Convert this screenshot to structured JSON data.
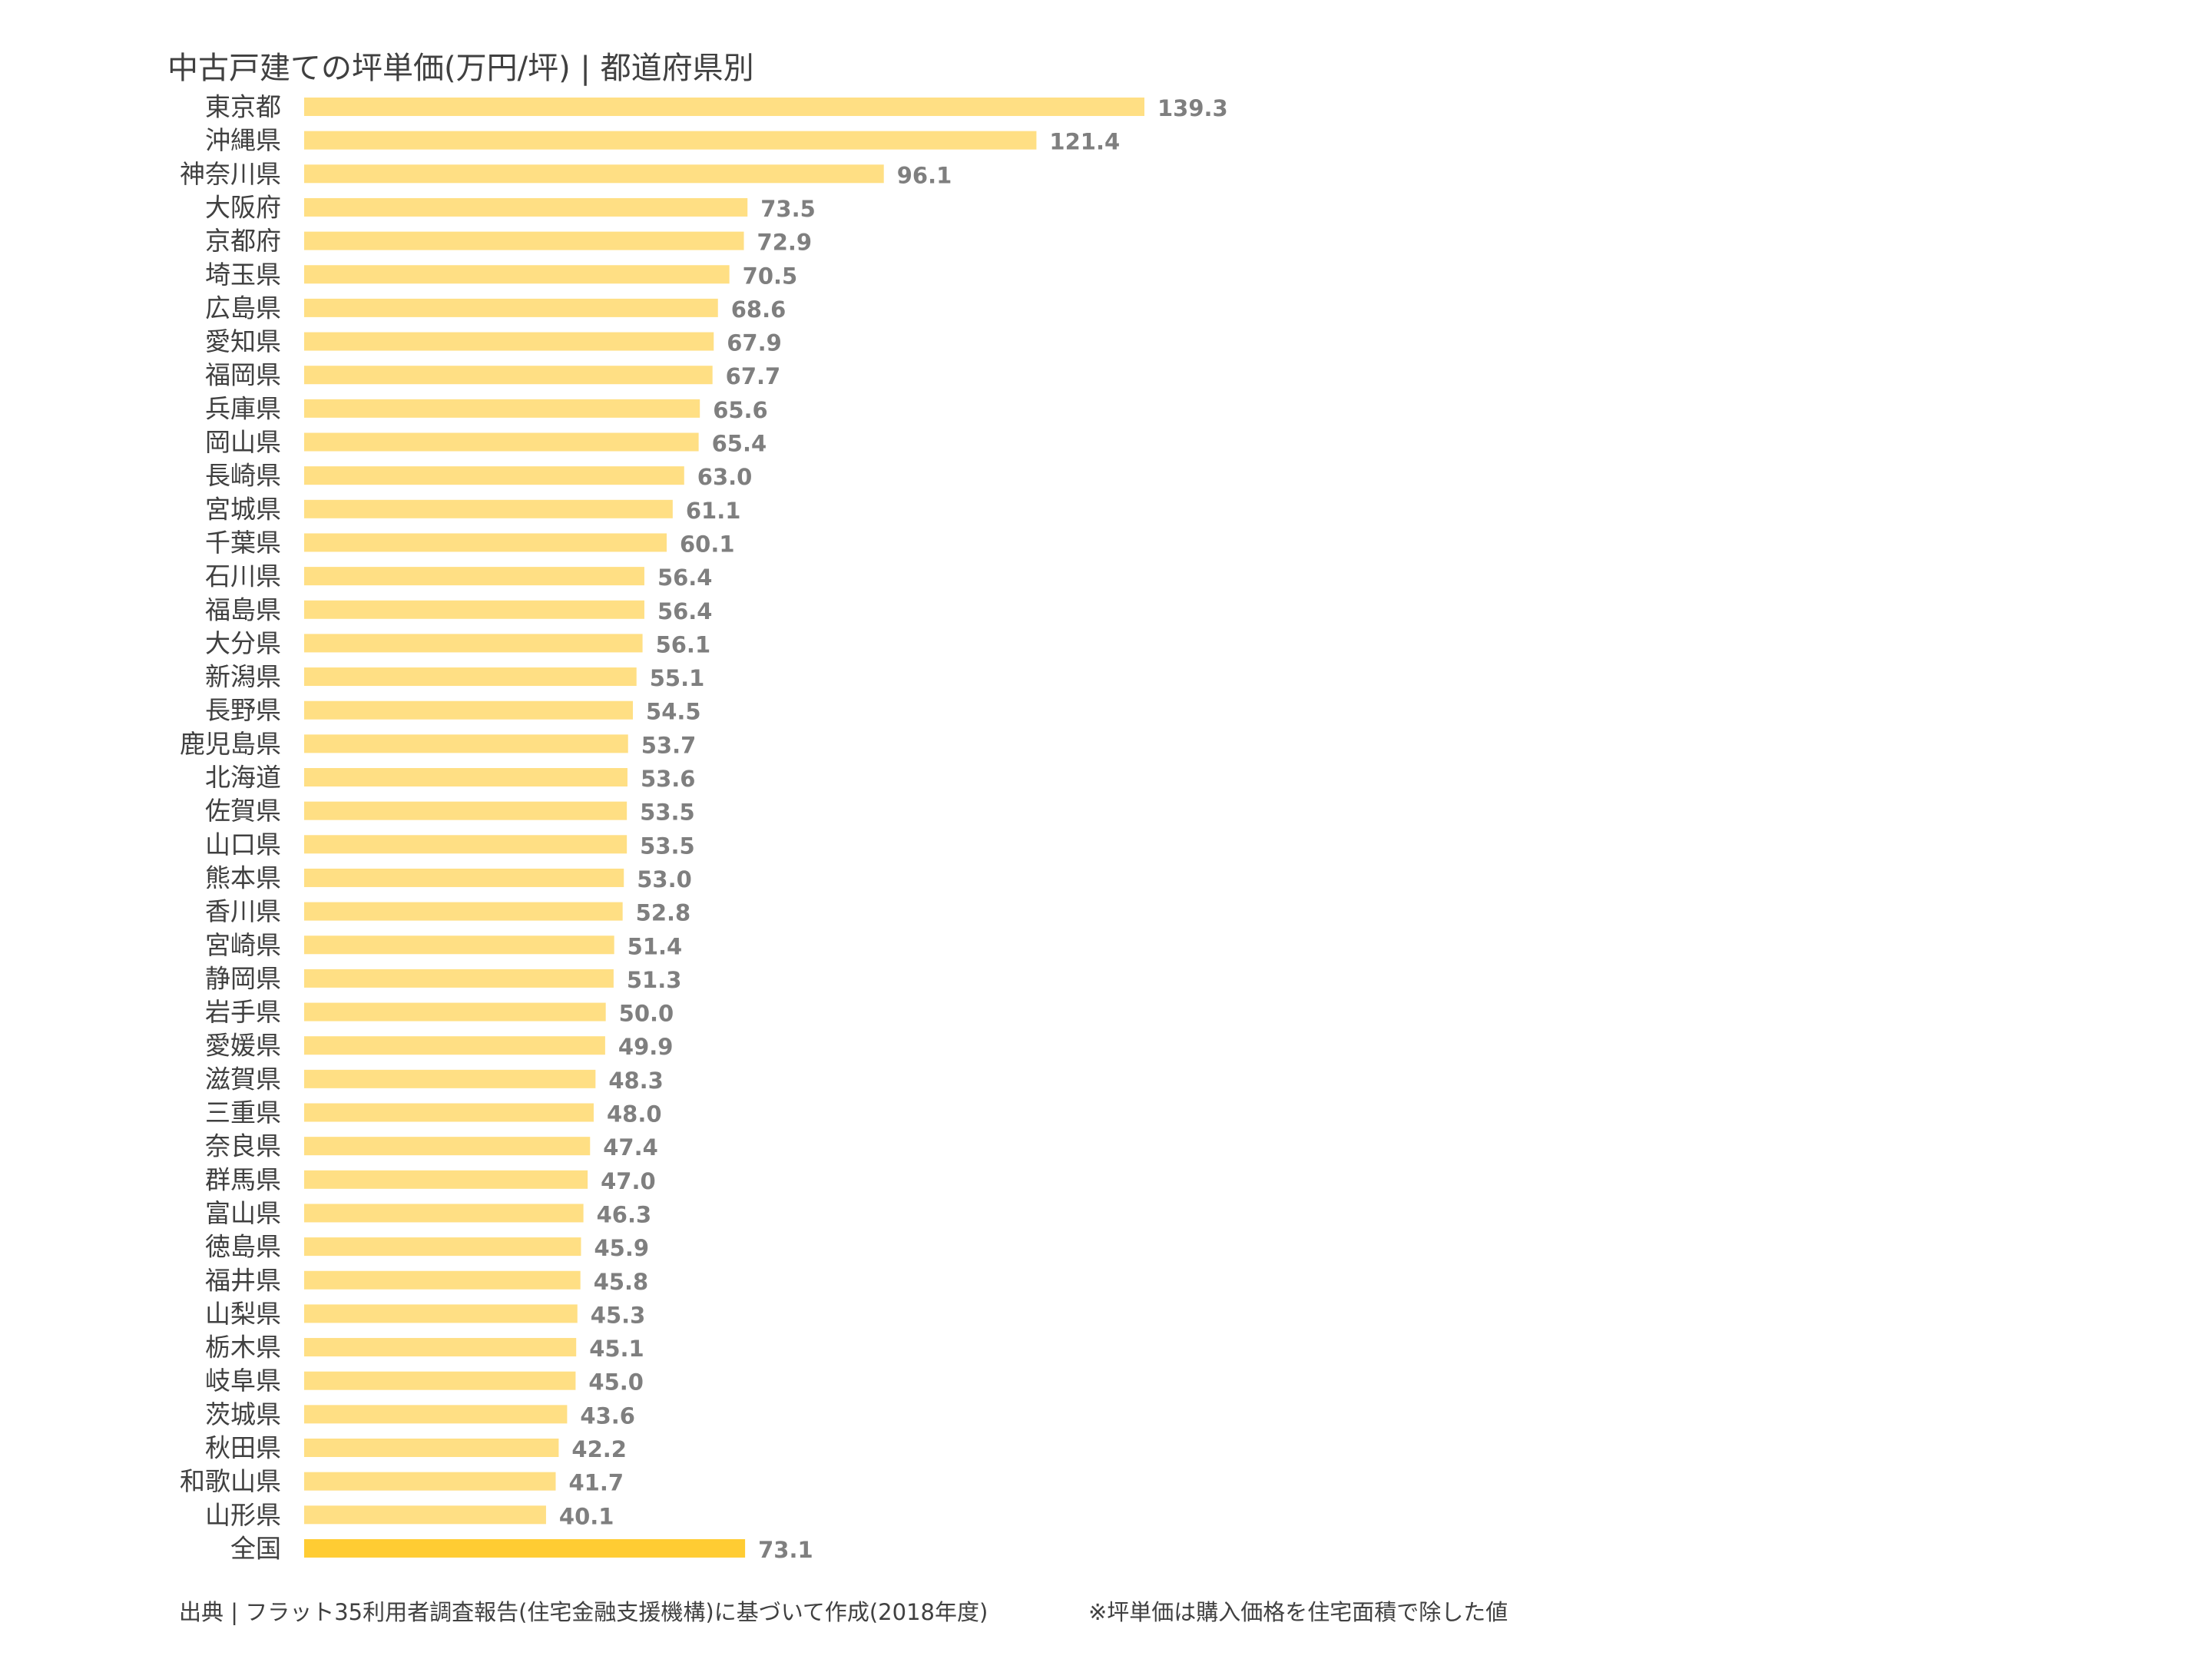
{
  "title": "中古戸建ての坪単価(万円/坪) | 都道府県別",
  "footer": {
    "source": "出典 | フラット35利用者調査報告(住宅金融支援機構)に基づいて作成(2018年度)",
    "note": "※坪単価は購入価格を住宅面積で除した値"
  },
  "colors": {
    "bar": "#FFDF84",
    "bar_highlight": "#FFCC33",
    "label": "#404040",
    "value_label": "#7F7F7F"
  },
  "chart_data": {
    "type": "bar",
    "orientation": "horizontal",
    "title": "中古戸建ての坪単価(万円/坪) | 都道府県別",
    "xlabel": "",
    "ylabel": "",
    "grid": false,
    "legend": "none",
    "highlight_category": "全国",
    "categories": [
      "東京都",
      "沖縄県",
      "神奈川県",
      "大阪府",
      "京都府",
      "埼玉県",
      "広島県",
      "愛知県",
      "福岡県",
      "兵庫県",
      "岡山県",
      "長崎県",
      "宮城県",
      "千葉県",
      "石川県",
      "福島県",
      "大分県",
      "新潟県",
      "長野県",
      "鹿児島県",
      "北海道",
      "佐賀県",
      "山口県",
      "熊本県",
      "香川県",
      "宮崎県",
      "静岡県",
      "岩手県",
      "愛媛県",
      "滋賀県",
      "三重県",
      "奈良県",
      "群馬県",
      "富山県",
      "徳島県",
      "福井県",
      "山梨県",
      "栃木県",
      "岐阜県",
      "茨城県",
      "秋田県",
      "和歌山県",
      "山形県",
      "全国"
    ],
    "values": [
      139.3,
      121.4,
      96.1,
      73.5,
      72.9,
      70.5,
      68.6,
      67.9,
      67.7,
      65.6,
      65.4,
      63.0,
      61.1,
      60.1,
      56.4,
      56.4,
      56.1,
      55.1,
      54.5,
      53.7,
      53.6,
      53.5,
      53.5,
      53.0,
      52.8,
      51.4,
      51.3,
      50.0,
      49.9,
      48.3,
      48.0,
      47.4,
      47.0,
      46.3,
      45.9,
      45.8,
      45.3,
      45.1,
      45.0,
      43.6,
      42.2,
      41.7,
      40.1,
      73.1
    ],
    "value_labels": [
      "139.3",
      "121.4",
      "96.1",
      "73.5",
      "72.9",
      "70.5",
      "68.6",
      "67.9",
      "67.7",
      "65.6",
      "65.4",
      "63.0",
      "61.1",
      "60.1",
      "56.4",
      "56.4",
      "56.1",
      "55.1",
      "54.5",
      "53.7",
      "53.6",
      "53.5",
      "53.5",
      "53.0",
      "52.8",
      "51.4",
      "51.3",
      "50.0",
      "49.9",
      "48.3",
      "48.0",
      "47.4",
      "47.0",
      "46.3",
      "45.9",
      "45.8",
      "45.3",
      "45.1",
      "45.0",
      "43.6",
      "42.2",
      "41.7",
      "40.1",
      "73.1"
    ],
    "xlim": [
      0,
      139.3
    ]
  }
}
